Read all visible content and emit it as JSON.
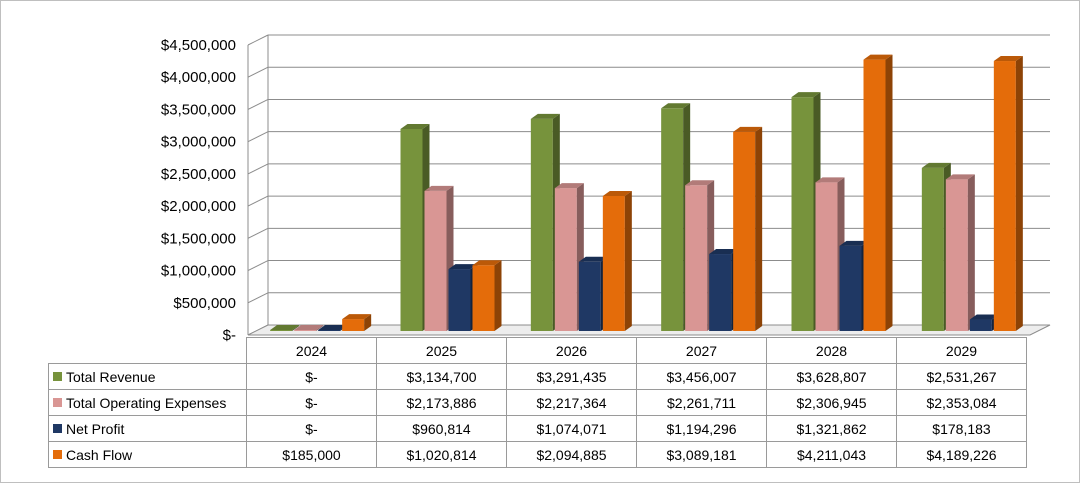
{
  "chart_data": {
    "type": "bar",
    "categories": [
      "2024",
      "2025",
      "2026",
      "2027",
      "2028",
      "2029"
    ],
    "ylim": [
      0,
      4500000
    ],
    "y_ticks": [
      "$-",
      "$500,000",
      "$1,000,000",
      "$1,500,000",
      "$2,000,000",
      "$2,500,000",
      "$3,000,000",
      "$3,500,000",
      "$4,000,000",
      "$4,500,000"
    ],
    "grid": true,
    "legend": "data-table",
    "series": [
      {
        "name": "Total Revenue",
        "color": "#77933c",
        "values": [
          0,
          3134700,
          3291435,
          3456007,
          3628807,
          2531267
        ],
        "labels": [
          "$-",
          "$3,134,700",
          "$3,291,435",
          "$3,456,007",
          "$3,628,807",
          "$2,531,267"
        ]
      },
      {
        "name": "Total Operating Expenses",
        "color": "#d99694",
        "values": [
          0,
          2173886,
          2217364,
          2261711,
          2306945,
          2353084
        ],
        "labels": [
          "$-",
          "$2,173,886",
          "$2,217,364",
          "$2,261,711",
          "$2,306,945",
          "$2,353,084"
        ]
      },
      {
        "name": "Net Profit",
        "color": "#1f3864",
        "values": [
          0,
          960814,
          1074071,
          1194296,
          1321862,
          178183
        ],
        "labels": [
          "$-",
          "$960,814",
          "$1,074,071",
          "$1,194,296",
          "$1,321,862",
          "$178,183"
        ]
      },
      {
        "name": "Cash Flow",
        "color": "#e46c0a",
        "values": [
          185000,
          1020814,
          2094885,
          3089181,
          4211043,
          4189226
        ],
        "labels": [
          "$185,000",
          "$1,020,814",
          "$2,094,885",
          "$3,089,181",
          "$4,211,043",
          "$4,189,226"
        ]
      }
    ]
  }
}
